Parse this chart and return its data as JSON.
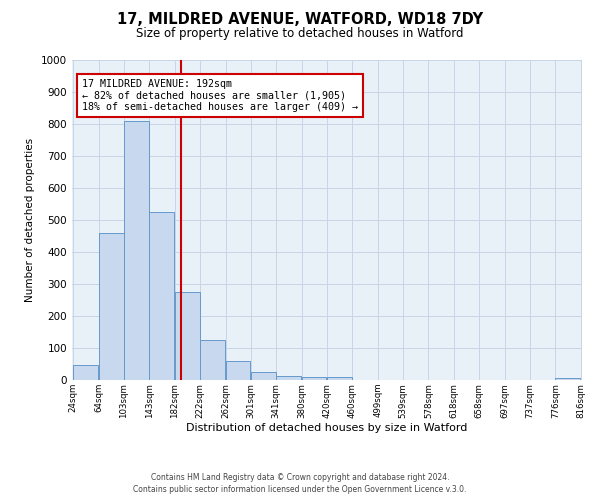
{
  "title": "17, MILDRED AVENUE, WATFORD, WD18 7DY",
  "subtitle": "Size of property relative to detached houses in Watford",
  "xlabel": "Distribution of detached houses by size in Watford",
  "ylabel": "Number of detached properties",
  "bar_heights": [
    48,
    460,
    810,
    525,
    275,
    125,
    60,
    25,
    12,
    10,
    8,
    0,
    0,
    0,
    0,
    0,
    0,
    0,
    0,
    5
  ],
  "x_tick_labels": [
    "24sqm",
    "64sqm",
    "103sqm",
    "143sqm",
    "182sqm",
    "222sqm",
    "262sqm",
    "301sqm",
    "341sqm",
    "380sqm",
    "420sqm",
    "460sqm",
    "499sqm",
    "539sqm",
    "578sqm",
    "618sqm",
    "658sqm",
    "697sqm",
    "737sqm",
    "776sqm",
    "816sqm"
  ],
  "ylim": [
    0,
    1000
  ],
  "yticks": [
    0,
    100,
    200,
    300,
    400,
    500,
    600,
    700,
    800,
    900,
    1000
  ],
  "vline_bin": 4,
  "vline_color": "#cc0000",
  "annotation_title": "17 MILDRED AVENUE: 192sqm",
  "annotation_line1": "← 82% of detached houses are smaller (1,905)",
  "annotation_line2": "18% of semi-detached houses are larger (409) →",
  "annotation_box_color": "#cc0000",
  "bar_color": "#c8d8ee",
  "bar_edgecolor": "#6699cc",
  "grid_color": "#c8d4e8",
  "background_color": "#e8f0f8",
  "footer1": "Contains HM Land Registry data © Crown copyright and database right 2024.",
  "footer2": "Contains public sector information licensed under the Open Government Licence v.3.0."
}
